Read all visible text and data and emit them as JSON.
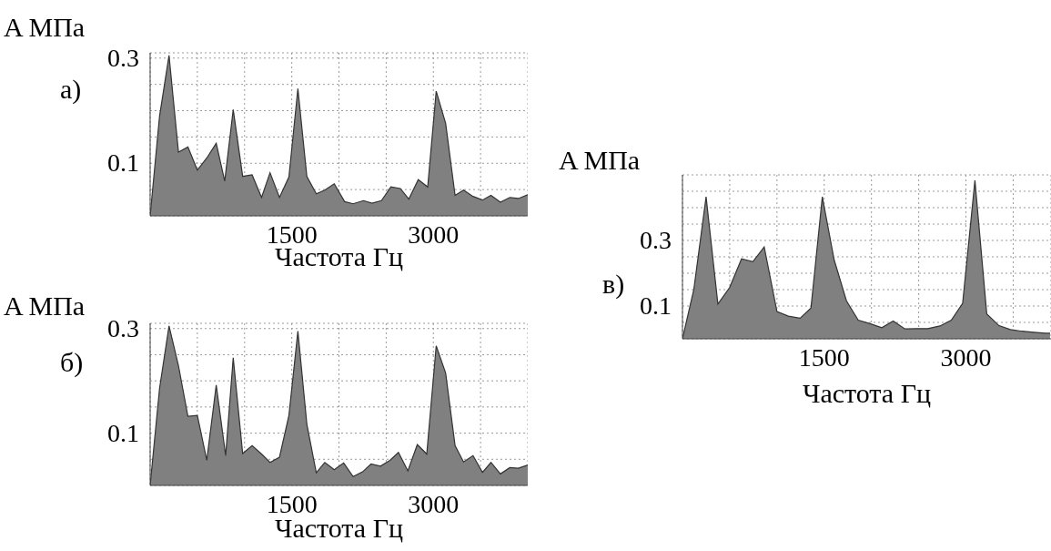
{
  "chart_data": [
    {
      "type": "area",
      "title": "а)",
      "xlabel": "Частота Гц",
      "ylabel": "A МПа",
      "color": "#808080",
      "grid": true,
      "x": [
        0,
        100,
        200,
        300,
        400,
        500,
        600,
        700,
        790,
        880,
        980,
        1080,
        1180,
        1270,
        1370,
        1470,
        1565,
        1660,
        1760,
        1850,
        1950,
        2060,
        2150,
        2260,
        2350,
        2450,
        2550,
        2650,
        2740,
        2840,
        2940,
        3030,
        3130,
        3230,
        3320,
        3420,
        3520,
        3610,
        3710,
        3810,
        3900,
        4000
      ],
      "values": [
        0,
        0.19,
        0.305,
        0.121,
        0.131,
        0.087,
        0.11,
        0.138,
        0.066,
        0.202,
        0.075,
        0.078,
        0.035,
        0.082,
        0.035,
        0.074,
        0.242,
        0.075,
        0.042,
        0.049,
        0.061,
        0.027,
        0.023,
        0.029,
        0.024,
        0.029,
        0.055,
        0.052,
        0.032,
        0.069,
        0.055,
        0.237,
        0.176,
        0.039,
        0.049,
        0.037,
        0.03,
        0.039,
        0.026,
        0.035,
        0.033,
        0.04
      ],
      "xlim": [
        0,
        4000
      ],
      "ylim": [
        0,
        0.31
      ],
      "xticks": [
        {
          "value": 500,
          "label": null
        },
        {
          "value": 1000,
          "label": null
        },
        {
          "value": 1500,
          "label": "1500"
        },
        {
          "value": 2000,
          "label": null
        },
        {
          "value": 2500,
          "label": null
        },
        {
          "value": 3000,
          "label": "3000"
        },
        {
          "value": 3500,
          "label": null
        }
      ],
      "yticks": [
        {
          "value": 0.05,
          "label": null
        },
        {
          "value": 0.1,
          "label": "0.1"
        },
        {
          "value": 0.15,
          "label": null
        },
        {
          "value": 0.2,
          "label": null
        },
        {
          "value": 0.25,
          "label": null
        },
        {
          "value": 0.3,
          "label": "0.3"
        }
      ]
    },
    {
      "type": "area",
      "title": "б)",
      "xlabel": "Частота Гц",
      "ylabel": "A МПа",
      "color": "#808080",
      "grid": true,
      "x": [
        0,
        100,
        200,
        300,
        400,
        500,
        600,
        700,
        800,
        880,
        980,
        1080,
        1180,
        1270,
        1370,
        1470,
        1565,
        1660,
        1760,
        1850,
        1950,
        2050,
        2150,
        2250,
        2340,
        2440,
        2540,
        2630,
        2730,
        2830,
        2930,
        3030,
        3130,
        3230,
        3320,
        3420,
        3520,
        3610,
        3710,
        3810,
        3900,
        4000
      ],
      "values": [
        0,
        0.186,
        0.305,
        0.229,
        0.132,
        0.134,
        0.048,
        0.192,
        0.057,
        0.244,
        0.061,
        0.076,
        0.06,
        0.044,
        0.054,
        0.134,
        0.295,
        0.117,
        0.024,
        0.044,
        0.03,
        0.043,
        0.017,
        0.026,
        0.041,
        0.037,
        0.048,
        0.063,
        0.028,
        0.078,
        0.06,
        0.267,
        0.215,
        0.076,
        0.045,
        0.057,
        0.025,
        0.044,
        0.022,
        0.034,
        0.033,
        0.039
      ],
      "xlim": [
        0,
        4000
      ],
      "ylim": [
        0,
        0.31
      ],
      "xticks": [
        {
          "value": 500,
          "label": null
        },
        {
          "value": 1000,
          "label": null
        },
        {
          "value": 1500,
          "label": "1500"
        },
        {
          "value": 2000,
          "label": null
        },
        {
          "value": 2500,
          "label": null
        },
        {
          "value": 3000,
          "label": "3000"
        },
        {
          "value": 3500,
          "label": null
        }
      ],
      "yticks": [
        {
          "value": 0.05,
          "label": null
        },
        {
          "value": 0.1,
          "label": "0.1"
        },
        {
          "value": 0.15,
          "label": null
        },
        {
          "value": 0.2,
          "label": null
        },
        {
          "value": 0.25,
          "label": null
        },
        {
          "value": 0.3,
          "label": "0.3"
        }
      ]
    },
    {
      "type": "area",
      "title": "в)",
      "xlabel": "Частота Гц",
      "ylabel": "A МПа",
      "color": "#808080",
      "grid": true,
      "x": [
        0,
        120,
        250,
        375,
        500,
        625,
        745,
        865,
        1000,
        1120,
        1245,
        1360,
        1480,
        1605,
        1735,
        1860,
        1985,
        2110,
        2230,
        2355,
        2480,
        2595,
        2725,
        2845,
        2965,
        3095,
        3220,
        3350,
        3470,
        3595,
        3720,
        3840,
        3890
      ],
      "values": [
        0,
        0.15,
        0.433,
        0.106,
        0.157,
        0.244,
        0.235,
        0.28,
        0.083,
        0.069,
        0.063,
        0.094,
        0.433,
        0.241,
        0.116,
        0.057,
        0.046,
        0.034,
        0.054,
        0.03,
        0.031,
        0.031,
        0.039,
        0.057,
        0.108,
        0.483,
        0.076,
        0.04,
        0.028,
        0.023,
        0.02,
        0.017,
        0.017
      ],
      "xlim": [
        0,
        3900
      ],
      "ylim": [
        0,
        0.5
      ],
      "xticks": [
        {
          "value": 500,
          "label": null
        },
        {
          "value": 1000,
          "label": null
        },
        {
          "value": 1500,
          "label": "1500"
        },
        {
          "value": 2000,
          "label": null
        },
        {
          "value": 2500,
          "label": null
        },
        {
          "value": 3000,
          "label": "3000"
        },
        {
          "value": 3500,
          "label": null
        }
      ],
      "yticks": [
        {
          "value": 0.05,
          "label": null
        },
        {
          "value": 0.1,
          "label": "0.1"
        },
        {
          "value": 0.15,
          "label": null
        },
        {
          "value": 0.2,
          "label": null
        },
        {
          "value": 0.25,
          "label": null
        },
        {
          "value": 0.3,
          "label": "0.3"
        },
        {
          "value": 0.35,
          "label": null
        },
        {
          "value": 0.4,
          "label": null
        },
        {
          "value": 0.45,
          "label": null
        }
      ]
    }
  ]
}
